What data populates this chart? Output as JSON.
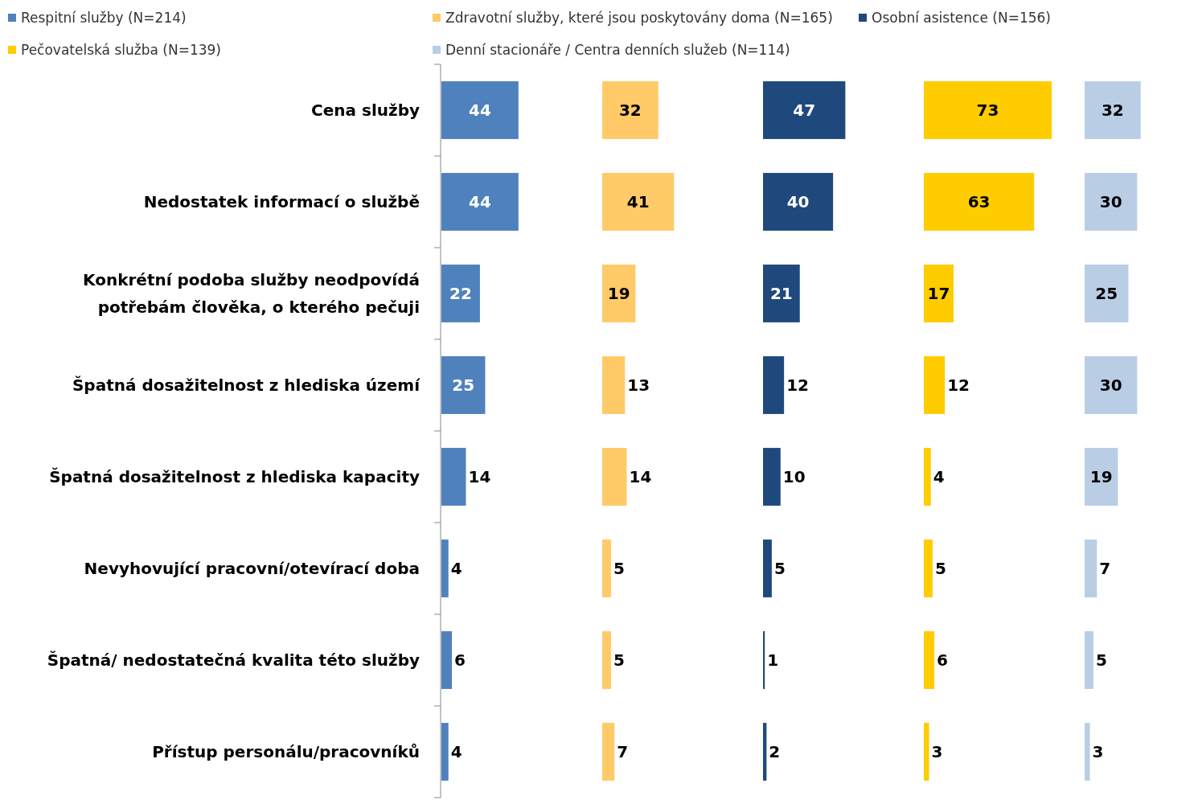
{
  "chart_data": [
    {
      "type": "bar",
      "orientation": "horizontal",
      "categories": [
        "Cena služby",
        "Nedostatek informací o službě",
        "Konkrétní podoba služby neodpovídá potřebám člověka, o kterého pečuji",
        "Špatná dosažitelnost z hlediska území",
        "Špatná dosažitelnost z hlediska kapacity",
        "Nevyhovující pracovní/otevírací doba",
        "Špatná/ nedostatečná kvalita této služby",
        "Přístup personálu/pracovníků"
      ],
      "series": [
        {
          "name": "Respitní služby (N=214)",
          "color": "#4f81bd",
          "values": [
            44,
            44,
            22,
            25,
            14,
            4,
            6,
            4
          ]
        }
      ],
      "data_labels": true,
      "legend": "top"
    },
    {
      "type": "bar",
      "orientation": "horizontal",
      "categories": [
        "Cena služby",
        "Nedostatek informací o službě",
        "Konkrétní podoba služby neodpovídá potřebám člověka, o kterého pečuji",
        "Špatná dosažitelnost z hlediska území",
        "Špatná dosažitelnost z hlediska kapacity",
        "Nevyhovující pracovní/otevírací doba",
        "Špatná/ nedostatečná kvalita této služby",
        "Přístup personálu/pracovníků"
      ],
      "series": [
        {
          "name": "Zdravotní služby, které jsou poskytovány doma (N=165)",
          "color": "#ffca67",
          "values": [
            32,
            41,
            19,
            13,
            14,
            5,
            5,
            7
          ]
        }
      ],
      "data_labels": true,
      "legend": "top",
      "tick_labels": false
    },
    {
      "type": "bar",
      "orientation": "horizontal",
      "categories": [
        "Cena služby",
        "Nedostatek informací o službě",
        "Konkrétní podoba služby neodpovídá potřebám člověka, o kterého pečuji",
        "Špatná dosažitelnost z hlediska území",
        "Špatná dosažitelnost z hlediska kapacity",
        "Nevyhovující pracovní/otevírací doba",
        "Špatná/ nedostatečná kvalita této služby",
        "Přístup personálu/pracovníků"
      ],
      "series": [
        {
          "name": "Osobní asistence (N=156)",
          "color": "#1f497d",
          "values": [
            47,
            40,
            21,
            12,
            10,
            5,
            1,
            2
          ]
        }
      ],
      "data_labels": true,
      "legend": "top",
      "tick_labels": false
    },
    {
      "type": "bar",
      "orientation": "horizontal",
      "categories": [
        "Cena služby",
        "Nedostatek informací o službě",
        "Konkrétní podoba služby neodpovídá potřebám člověka, o kterého pečuji",
        "Špatná dosažitelnost z hlediska území",
        "Špatná dosažitelnost z hlediska kapacity",
        "Nevyhovující pracovní/otevírací doba",
        "Špatná/ nedostatečná kvalita této služby",
        "Přístup personálu/pracovníků"
      ],
      "series": [
        {
          "name": "Pečovatelská služba (N=139)",
          "color": "#ffcc00",
          "values": [
            73,
            63,
            17,
            12,
            4,
            5,
            6,
            3
          ]
        }
      ],
      "data_labels": true,
      "legend": "top",
      "tick_labels": false
    },
    {
      "type": "bar",
      "orientation": "horizontal",
      "categories": [
        "Cena služby",
        "Nedostatek informací o službě",
        "Konkrétní podoba služby neodpovídá potřebám člověka, o kterého pečuji",
        "Špatná dosažitelnost z hlediska území",
        "Špatná dosažitelnost z hlediska kapacity",
        "Nevyhovující pracovní/otevírací doba",
        "Špatná/ nedostatečná kvalita této služby",
        "Přístup personálu/pracovníků"
      ],
      "series": [
        {
          "name": "Denní stacionáře / Centra denních služeb  (N=114)",
          "color": "#b9cde5",
          "values": [
            32,
            30,
            25,
            30,
            19,
            7,
            5,
            3
          ]
        }
      ],
      "data_labels": true,
      "legend": "top",
      "tick_labels": false
    }
  ]
}
